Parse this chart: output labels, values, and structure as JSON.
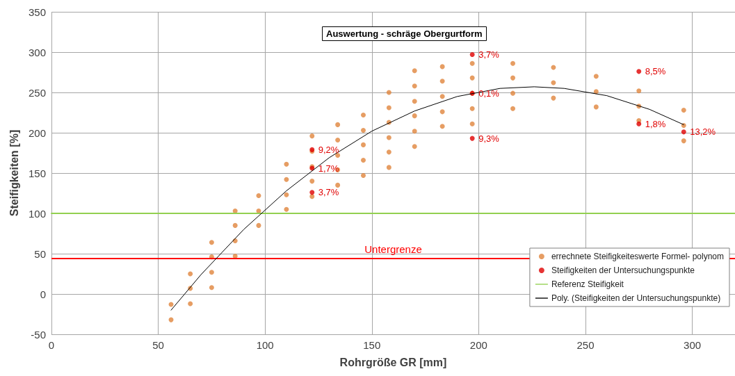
{
  "chart_data": {
    "type": "scatter",
    "title": "Auswertung - schräge Obergurtform",
    "xlabel": "Rohrgröße GR [mm]",
    "ylabel": "Steifigkeiten [%]",
    "xlim": [
      0,
      320
    ],
    "xticks": [
      0,
      50,
      100,
      150,
      200,
      250,
      300
    ],
    "ylim": [
      -50,
      350
    ],
    "yticks": [
      -50,
      0,
      50,
      100,
      150,
      200,
      250,
      300,
      350
    ],
    "grid": true,
    "legend": "bottom right",
    "marker": "circle",
    "series": [
      {
        "name": "errechnete Steifigkeiteswerte Formel- polynom",
        "color": "#e0843c",
        "x": [
          56,
          56,
          65,
          65,
          65,
          75,
          75,
          75,
          75,
          86,
          86,
          86,
          86,
          97,
          97,
          97,
          110,
          110,
          110,
          110,
          122,
          122,
          122,
          122,
          122,
          134,
          134,
          134,
          134,
          134,
          146,
          146,
          146,
          146,
          146,
          158,
          158,
          158,
          158,
          158,
          158,
          170,
          170,
          170,
          170,
          170,
          170,
          183,
          183,
          183,
          183,
          183,
          197,
          197,
          197,
          197,
          197,
          216,
          216,
          216,
          216,
          235,
          235,
          235,
          255,
          255,
          255,
          275,
          275,
          275,
          296,
          296,
          296
        ],
        "values": [
          -13,
          -32,
          25,
          7,
          -12,
          64,
          46,
          27,
          8,
          103,
          85,
          66,
          47,
          122,
          103,
          85,
          161,
          142,
          123,
          105,
          196,
          177,
          158,
          140,
          121,
          210,
          191,
          172,
          154,
          135,
          222,
          203,
          185,
          166,
          147,
          250,
          231,
          213,
          194,
          176,
          157,
          277,
          258,
          239,
          221,
          202,
          183,
          282,
          264,
          245,
          226,
          208,
          286,
          268,
          249,
          230,
          211,
          286,
          268,
          249,
          230,
          281,
          262,
          243,
          270,
          251,
          232,
          252,
          233,
          215,
          228,
          209,
          190
        ]
      },
      {
        "name": "Steifigkeiten der Untersuchungspunkte",
        "color": "#e00000",
        "x": [
          122,
          122,
          122,
          197,
          197,
          197,
          275,
          275,
          296
        ],
        "values": [
          179,
          156,
          126,
          297,
          249,
          193,
          276,
          211,
          201
        ]
      },
      {
        "name": "Referenz Steifigkeit",
        "type": "line",
        "color": "#92d050",
        "marker": "none",
        "line_style": "solid",
        "x": [
          0,
          320
        ],
        "values": [
          100,
          100
        ]
      },
      {
        "name": "Poly. (Steifigkeiten der Untersuchungspunkte)",
        "type": "line",
        "color": "#000000",
        "marker": "none",
        "line_style": "solid",
        "x": [
          56,
          70,
          90,
          110,
          130,
          150,
          170,
          190,
          210,
          226,
          240,
          260,
          280,
          296
        ],
        "values": [
          -20,
          24,
          80,
          128,
          169,
          202,
          227,
          245,
          255,
          257,
          255,
          246,
          229,
          210
        ]
      }
    ],
    "annotations": [
      {
        "text": "9,2%",
        "x": 122,
        "y": 179
      },
      {
        "text": "1,7%",
        "x": 122,
        "y": 156
      },
      {
        "text": "3,7%",
        "x": 122,
        "y": 126
      },
      {
        "text": "3,7%",
        "x": 197,
        "y": 297
      },
      {
        "text": "0,1%",
        "x": 197,
        "y": 249
      },
      {
        "text": "9,3%",
        "x": 197,
        "y": 193
      },
      {
        "text": "8,5%",
        "x": 275,
        "y": 276
      },
      {
        "text": "1,8%",
        "x": 275,
        "y": 211
      },
      {
        "text": "13,2%",
        "x": 296,
        "y": 201
      }
    ],
    "ref_lines": [
      {
        "axis": "y",
        "value": 44,
        "label": "Untergrenze",
        "color": "#ff0000",
        "line_style": "solid"
      }
    ]
  }
}
